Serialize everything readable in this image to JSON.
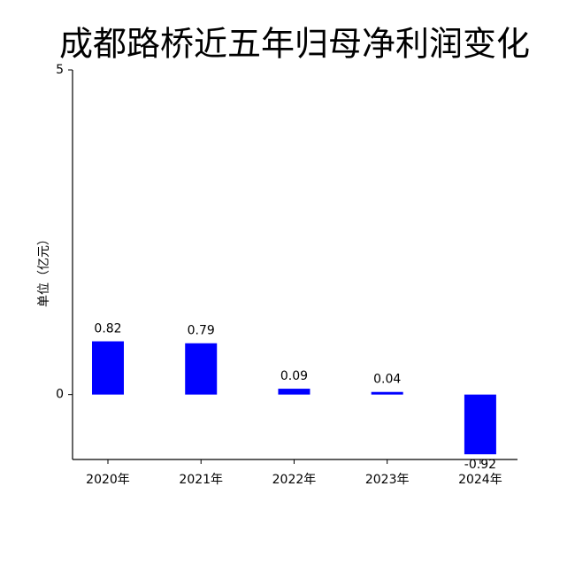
{
  "chart_data": {
    "type": "bar",
    "title": "成都路桥近五年归母净利润变化",
    "y_label": "单位（亿元）",
    "categories": [
      "2020年",
      "2021年",
      "2022年",
      "2023年",
      "2024年"
    ],
    "values": [
      0.82,
      0.79,
      0.09,
      0.04,
      -0.92
    ],
    "color": "#0000ff",
    "ylim": [
      -1,
      5
    ],
    "yticks": [
      0,
      5
    ],
    "grid": false
  }
}
